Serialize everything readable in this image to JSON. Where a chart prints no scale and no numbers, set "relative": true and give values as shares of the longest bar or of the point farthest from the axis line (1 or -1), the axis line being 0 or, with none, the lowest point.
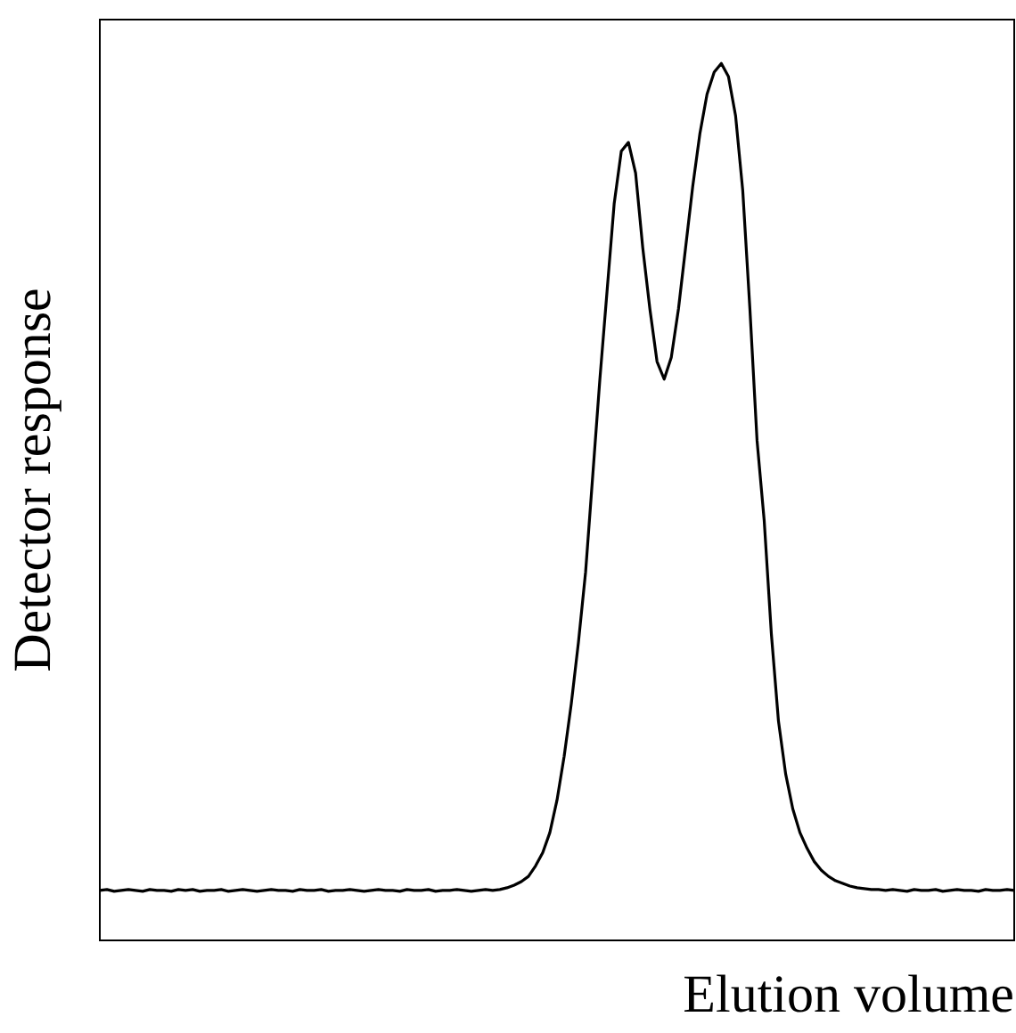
{
  "chart_data": {
    "type": "line",
    "relative": true,
    "xlabel": "Elution volume",
    "ylabel": "Detector response",
    "grid": false,
    "legend": false,
    "marker": "none",
    "line_style": "solid",
    "categories": [
      null,
      null,
      null,
      null,
      null,
      null,
      null,
      null,
      null,
      null,
      null,
      null,
      null,
      null,
      null,
      null,
      null,
      null,
      null,
      null,
      null,
      null,
      null,
      null,
      null,
      null,
      null,
      null,
      null,
      null,
      null,
      null,
      null,
      null,
      null,
      null,
      null,
      null,
      null,
      null,
      null,
      null,
      null,
      null,
      null,
      null,
      null,
      null,
      null,
      null,
      null,
      null,
      null,
      null,
      null,
      null,
      null,
      null,
      null,
      null,
      null,
      null,
      null,
      null,
      null,
      null,
      null,
      null,
      null,
      null,
      null,
      null,
      null,
      null,
      null,
      null,
      null,
      null,
      null,
      null,
      null,
      null,
      null,
      null,
      null,
      null,
      null,
      null,
      null,
      null,
      null,
      null,
      null,
      null,
      null,
      null,
      null,
      null,
      null,
      null,
      null,
      null,
      null,
      null,
      null,
      null,
      null,
      null,
      null,
      null,
      null,
      null,
      null,
      null,
      null,
      null,
      null,
      null,
      null,
      null,
      null,
      null,
      null,
      null,
      null,
      null,
      null,
      null,
      null
    ],
    "series": [
      {
        "color": "#000000",
        "values": [
          0.057,
          0.058,
          0.056,
          0.057,
          0.058,
          0.057,
          0.056,
          0.058,
          0.057,
          0.057,
          0.056,
          0.058,
          0.057,
          0.058,
          0.056,
          0.057,
          0.057,
          0.058,
          0.056,
          0.057,
          0.058,
          0.057,
          0.056,
          0.057,
          0.058,
          0.057,
          0.057,
          0.056,
          0.058,
          0.057,
          0.057,
          0.058,
          0.056,
          0.057,
          0.057,
          0.058,
          0.057,
          0.056,
          0.057,
          0.058,
          0.057,
          0.057,
          0.056,
          0.058,
          0.057,
          0.057,
          0.058,
          0.056,
          0.057,
          0.057,
          0.058,
          0.057,
          0.056,
          0.057,
          0.058,
          0.057,
          0.058,
          0.06,
          0.063,
          0.067,
          0.073,
          0.085,
          0.1,
          0.123,
          0.16,
          0.21,
          0.27,
          0.34,
          0.42,
          0.53,
          0.64,
          0.74,
          0.84,
          0.9,
          0.91,
          0.875,
          0.79,
          0.72,
          0.66,
          0.64,
          0.665,
          0.72,
          0.79,
          0.86,
          0.92,
          0.965,
          0.99,
          1,
          0.985,
          0.94,
          0.855,
          0.72,
          0.57,
          0.479,
          0.35,
          0.25,
          0.19,
          0.15,
          0.123,
          0.105,
          0.09,
          0.08,
          0.073,
          0.068,
          0.065,
          0.062,
          0.06,
          0.059,
          0.058,
          0.058,
          0.057,
          0.058,
          0.057,
          0.056,
          0.058,
          0.057,
          0.057,
          0.058,
          0.056,
          0.057,
          0.058,
          0.057,
          0.057,
          0.056,
          0.058,
          0.057,
          0.057,
          0.058,
          0.057
        ]
      }
    ]
  }
}
